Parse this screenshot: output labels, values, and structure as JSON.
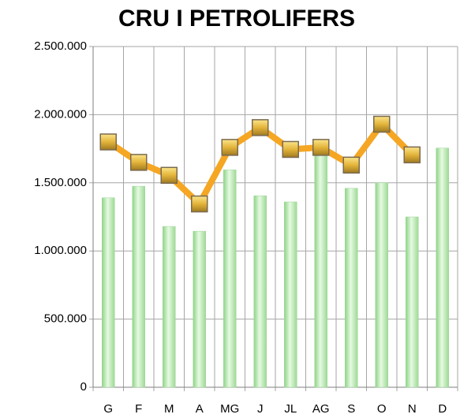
{
  "chart_data": {
    "type": "bar-line",
    "title": "CRU I PETROLIFERS",
    "categories": [
      "G",
      "F",
      "M",
      "A",
      "MG",
      "J",
      "JL",
      "AG",
      "S",
      "O",
      "N",
      "D"
    ],
    "series": [
      {
        "type": "bar",
        "color": "#b8ecb0",
        "values": [
          1390000,
          1475000,
          1180000,
          1145000,
          1595000,
          1405000,
          1360000,
          1720000,
          1460000,
          1500000,
          1250000,
          1755000
        ]
      },
      {
        "type": "line",
        "color": "#f5a623",
        "marker_color": "#e8c24a",
        "values": [
          1800000,
          1650000,
          1555000,
          1345000,
          1760000,
          1905000,
          1745000,
          1760000,
          1630000,
          1930000,
          1705000,
          null
        ]
      }
    ],
    "ylim": [
      0,
      2500000
    ],
    "yticks": [
      {
        "value": 0,
        "label": "0"
      },
      {
        "value": 500000,
        "label": "500.000"
      },
      {
        "value": 1000000,
        "label": "1.000.000"
      },
      {
        "value": 1500000,
        "label": "1.500.000"
      },
      {
        "value": 2000000,
        "label": "2.000.000"
      },
      {
        "value": 2500000,
        "label": "2.500.000"
      }
    ],
    "grid": true
  }
}
